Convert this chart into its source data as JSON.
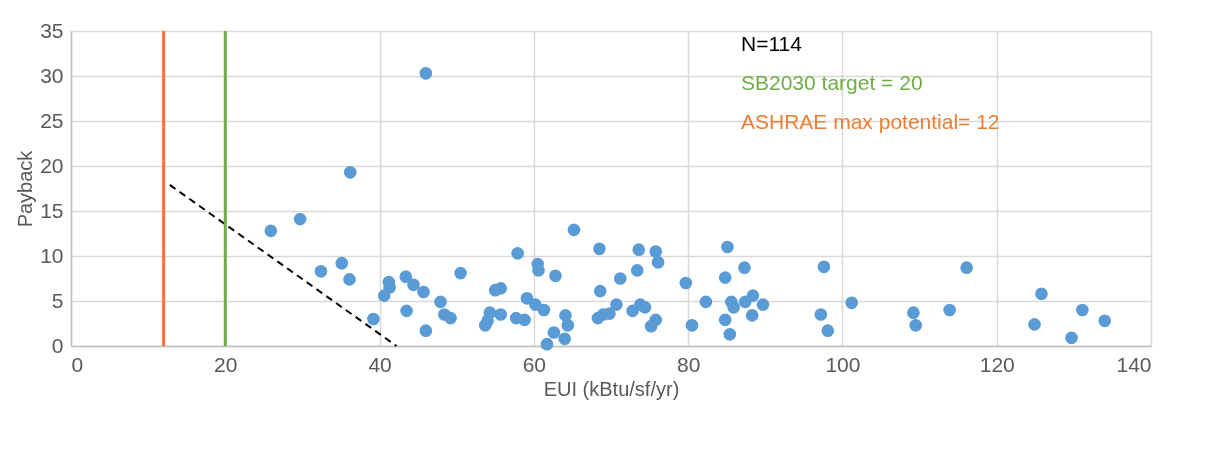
{
  "chart_data": {
    "type": "scatter",
    "xlabel": "EUI (kBtu/sf/yr)",
    "ylabel": "Payback",
    "xlim": [
      0,
      140
    ],
    "xticks": [
      0,
      20,
      40,
      60,
      80,
      100,
      120,
      140
    ],
    "ylim": [
      0,
      35
    ],
    "yticks": [
      0,
      5,
      10,
      15,
      20,
      25,
      30,
      35
    ],
    "grid": true,
    "annotations": [
      "N=114"
    ],
    "ref_lines": [
      {
        "axis": "x",
        "value": 20,
        "label": "SB2030 target = 20",
        "color": "#70ad47"
      },
      {
        "axis": "x",
        "value": 12,
        "label": "ASHRAE max potential= 12",
        "color": "#ed7d31"
      }
    ],
    "series": [
      {
        "color": "#5b9bd5",
        "marker": "circle",
        "x": [
          46.0,
          36.2,
          25.9,
          29.7,
          32.4,
          35.1,
          36.1,
          39.2,
          41.2,
          41.3,
          40.6,
          43.4,
          44.4,
          45.7,
          43.5,
          46.0,
          47.9,
          48.4,
          49.2,
          50.5,
          53.7,
          54.0,
          54.3,
          55.7,
          55.0,
          55.7,
          57.9,
          57.7,
          58.8,
          59.1,
          60.2,
          61.3,
          60.5,
          60.6,
          62.8,
          64.1,
          64.4,
          62.6,
          64.0,
          61.7,
          65.2,
          68.5,
          68.6,
          68.3,
          69.0,
          69.8,
          70.7,
          71.2,
          72.8,
          73.4,
          73.6,
          73.8,
          74.4,
          75.8,
          76.1,
          75.2,
          75.8,
          79.7,
          80.5,
          82.3,
          85.1,
          84.8,
          85.6,
          85.9,
          84.8,
          85.4,
          87.3,
          87.4,
          88.4,
          88.3,
          89.7,
          97.6,
          97.2,
          98.1,
          101.2,
          109.2,
          109.5,
          113.9,
          116.1,
          125.8,
          124.9,
          131.1,
          129.7,
          134.0
        ],
        "values": [
          30.3,
          19.3,
          12.8,
          14.1,
          8.3,
          9.2,
          7.4,
          3.0,
          7.1,
          6.5,
          5.6,
          7.7,
          6.8,
          6.0,
          3.9,
          1.7,
          4.9,
          3.5,
          3.1,
          8.1,
          2.3,
          2.8,
          3.7,
          3.5,
          6.2,
          6.4,
          10.3,
          3.1,
          2.9,
          5.3,
          4.6,
          4.0,
          9.1,
          8.4,
          7.8,
          3.4,
          2.3,
          1.5,
          0.8,
          0.2,
          12.9,
          10.8,
          6.1,
          3.1,
          3.5,
          3.6,
          4.6,
          7.5,
          3.9,
          8.4,
          10.7,
          4.6,
          4.3,
          10.5,
          9.3,
          2.2,
          2.9,
          7.0,
          2.3,
          4.9,
          11.0,
          7.6,
          4.9,
          4.3,
          2.9,
          1.3,
          8.7,
          4.9,
          5.6,
          3.4,
          4.6,
          8.8,
          3.5,
          1.7,
          4.8,
          3.7,
          2.3,
          4.0,
          8.7,
          5.8,
          2.4,
          4.0,
          0.9,
          2.8
        ]
      },
      {
        "type": "line",
        "color": "#000000",
        "line_style": "dashed",
        "marker": "none",
        "x": [
          12.8,
          42.2
        ],
        "values": [
          17.9,
          0
        ]
      }
    ]
  }
}
